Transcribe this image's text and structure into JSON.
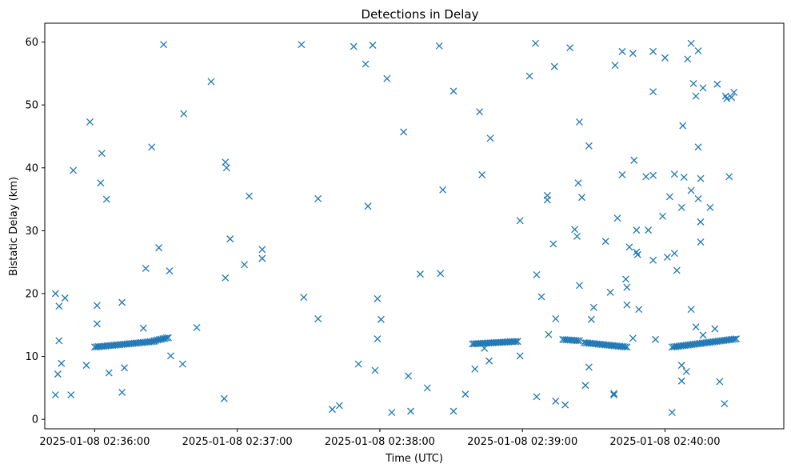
{
  "chart_data": {
    "type": "scatter",
    "title": "Detections in Delay",
    "xlabel": "Time (UTC)",
    "ylabel": "Bistatic Delay (km)",
    "marker": "x",
    "color": "#1f77b4",
    "grid": false,
    "xlim": [
      "2025-01-08 02:35:39",
      "2025-01-08 02:40:50"
    ],
    "ylim": [
      -1.5,
      63
    ],
    "xticks": [
      "2025-01-08 02:36:00",
      "2025-01-08 02:37:00",
      "2025-01-08 02:38:00",
      "2025-01-08 02:39:00",
      "2025-01-08 02:40:00"
    ],
    "yticks": [
      0,
      10,
      20,
      30,
      40,
      50,
      60
    ],
    "points": [
      [
        "2025-01-08 02:35:43.5",
        20.0
      ],
      [
        "2025-01-08 02:35:44.5",
        7.2
      ],
      [
        "2025-01-08 02:35:45",
        18.0
      ],
      [
        "2025-01-08 02:35:45",
        12.5
      ],
      [
        "2025-01-08 02:35:43.5",
        3.9
      ],
      [
        "2025-01-08 02:35:46",
        8.9
      ],
      [
        "2025-01-08 02:35:47.5",
        19.3
      ],
      [
        "2025-01-08 02:35:50",
        3.9
      ],
      [
        "2025-01-08 02:35:51",
        39.6
      ],
      [
        "2025-01-08 02:35:56.5",
        8.6
      ],
      [
        "2025-01-08 02:35:58",
        47.3
      ],
      [
        "2025-01-08 02:36:01",
        18.1
      ],
      [
        "2025-01-08 02:36:01",
        15.2
      ],
      [
        "2025-01-08 02:36:02.5",
        37.6
      ],
      [
        "2025-01-08 02:36:03",
        42.3
      ],
      [
        "2025-01-08 02:36:05",
        35.0
      ],
      [
        "2025-01-08 02:36:06",
        7.4
      ],
      [
        "2025-01-08 02:36:11.5",
        4.3
      ],
      [
        "2025-01-08 02:36:11.5",
        18.6
      ],
      [
        "2025-01-08 02:36:12.5",
        8.2
      ],
      [
        "2025-01-08 02:36:20.5",
        14.5
      ],
      [
        "2025-01-08 02:36:21.5",
        24.0
      ],
      [
        "2025-01-08 02:36:24",
        43.3
      ],
      [
        "2025-01-08 02:36:27",
        27.3
      ],
      [
        "2025-01-08 02:36:29",
        59.6
      ],
      [
        "2025-01-08 02:36:31.5",
        23.6
      ],
      [
        "2025-01-08 02:36:32",
        10.1
      ],
      [
        "2025-01-08 02:36:37",
        8.8
      ],
      [
        "2025-01-08 02:36:37.5",
        48.6
      ],
      [
        "2025-01-08 02:36:43",
        14.6
      ],
      [
        "2025-01-08 02:36:49",
        53.7
      ],
      [
        "2025-01-08 02:36:54.5",
        3.3
      ],
      [
        "2025-01-08 02:36:55",
        40.9
      ],
      [
        "2025-01-08 02:36:55",
        22.5
      ],
      [
        "2025-01-08 02:36:55.5",
        40.0
      ],
      [
        "2025-01-08 02:36:57",
        28.7
      ],
      [
        "2025-01-08 02:37:03",
        24.6
      ],
      [
        "2025-01-08 02:37:05",
        35.5
      ],
      [
        "2025-01-08 02:37:10.5",
        27.0
      ],
      [
        "2025-01-08 02:37:10.5",
        25.6
      ],
      [
        "2025-01-08 02:37:27",
        59.6
      ],
      [
        "2025-01-08 02:37:28",
        19.4
      ],
      [
        "2025-01-08 02:37:34",
        35.1
      ],
      [
        "2025-01-08 02:37:34",
        16.0
      ],
      [
        "2025-01-08 02:37:40",
        1.6
      ],
      [
        "2025-01-08 02:37:43",
        2.2
      ],
      [
        "2025-01-08 02:37:49",
        59.3
      ],
      [
        "2025-01-08 02:37:51",
        8.8
      ],
      [
        "2025-01-08 02:37:54",
        56.5
      ],
      [
        "2025-01-08 02:37:55",
        33.9
      ],
      [
        "2025-01-08 02:37:57",
        59.5
      ],
      [
        "2025-01-08 02:37:58",
        7.8
      ],
      [
        "2025-01-08 02:37:59",
        19.2
      ],
      [
        "2025-01-08 02:37:59",
        12.8
      ],
      [
        "2025-01-08 02:38:00.5",
        15.9
      ],
      [
        "2025-01-08 02:38:03",
        54.2
      ],
      [
        "2025-01-08 02:38:05",
        1.1
      ],
      [
        "2025-01-08 02:38:10",
        45.7
      ],
      [
        "2025-01-08 02:38:12",
        6.9
      ],
      [
        "2025-01-08 02:38:13",
        1.3
      ],
      [
        "2025-01-08 02:38:17",
        23.1
      ],
      [
        "2025-01-08 02:38:20",
        5.0
      ],
      [
        "2025-01-08 02:38:25",
        59.4
      ],
      [
        "2025-01-08 02:38:25.5",
        23.2
      ],
      [
        "2025-01-08 02:38:26.5",
        36.5
      ],
      [
        "2025-01-08 02:38:31",
        52.2
      ],
      [
        "2025-01-08 02:38:31",
        1.3
      ],
      [
        "2025-01-08 02:38:36",
        4.0
      ],
      [
        "2025-01-08 02:38:40",
        8.0
      ],
      [
        "2025-01-08 02:38:42",
        48.9
      ],
      [
        "2025-01-08 02:38:43",
        38.9
      ],
      [
        "2025-01-08 02:38:44",
        11.3
      ],
      [
        "2025-01-08 02:38:46",
        9.3
      ],
      [
        "2025-01-08 02:38:46.5",
        44.7
      ],
      [
        "2025-01-08 02:38:59",
        10.1
      ],
      [
        "2025-01-08 02:38:59",
        31.6
      ],
      [
        "2025-01-08 02:39:03",
        54.6
      ],
      [
        "2025-01-08 02:39:05.5",
        59.8
      ],
      [
        "2025-01-08 02:39:06",
        23.0
      ],
      [
        "2025-01-08 02:39:06",
        3.6
      ],
      [
        "2025-01-08 02:39:08",
        19.5
      ],
      [
        "2025-01-08 02:39:10.5",
        35.6
      ],
      [
        "2025-01-08 02:39:10.5",
        34.9
      ],
      [
        "2025-01-08 02:39:11",
        13.5
      ],
      [
        "2025-01-08 02:39:13",
        27.9
      ],
      [
        "2025-01-08 02:39:13.5",
        56.1
      ],
      [
        "2025-01-08 02:39:14",
        16.0
      ],
      [
        "2025-01-08 02:39:14",
        2.9
      ],
      [
        "2025-01-08 02:39:18",
        2.3
      ],
      [
        "2025-01-08 02:39:20",
        59.1
      ],
      [
        "2025-01-08 02:39:22",
        30.2
      ],
      [
        "2025-01-08 02:39:23",
        29.1
      ],
      [
        "2025-01-08 02:39:23.5",
        37.6
      ],
      [
        "2025-01-08 02:39:24",
        47.3
      ],
      [
        "2025-01-08 02:39:24",
        21.3
      ],
      [
        "2025-01-08 02:39:25",
        35.3
      ],
      [
        "2025-01-08 02:39:26.5",
        5.4
      ],
      [
        "2025-01-08 02:39:28",
        43.5
      ],
      [
        "2025-01-08 02:39:28",
        8.3
      ],
      [
        "2025-01-08 02:39:29",
        15.9
      ],
      [
        "2025-01-08 02:39:30",
        17.8
      ],
      [
        "2025-01-08 02:39:35",
        28.3
      ],
      [
        "2025-01-08 02:39:37",
        20.2
      ],
      [
        "2025-01-08 02:39:38.5",
        3.9
      ],
      [
        "2025-01-08 02:39:38.5",
        4.1
      ],
      [
        "2025-01-08 02:39:39",
        56.3
      ],
      [
        "2025-01-08 02:39:40",
        32.0
      ],
      [
        "2025-01-08 02:39:42",
        58.5
      ],
      [
        "2025-01-08 02:39:42",
        38.9
      ],
      [
        "2025-01-08 02:39:43.5",
        22.3
      ],
      [
        "2025-01-08 02:39:44",
        21.0
      ],
      [
        "2025-01-08 02:39:44",
        18.2
      ],
      [
        "2025-01-08 02:39:45",
        27.4
      ],
      [
        "2025-01-08 02:39:46.5",
        58.2
      ],
      [
        "2025-01-08 02:39:46.5",
        12.9
      ],
      [
        "2025-01-08 02:39:47",
        41.2
      ],
      [
        "2025-01-08 02:39:48",
        30.1
      ],
      [
        "2025-01-08 02:39:48",
        26.6
      ],
      [
        "2025-01-08 02:39:48.5",
        26.2
      ],
      [
        "2025-01-08 02:39:49",
        17.5
      ],
      [
        "2025-01-08 02:39:52",
        38.6
      ],
      [
        "2025-01-08 02:39:53",
        30.1
      ],
      [
        "2025-01-08 02:39:55",
        58.5
      ],
      [
        "2025-01-08 02:39:55",
        52.1
      ],
      [
        "2025-01-08 02:39:55",
        38.8
      ],
      [
        "2025-01-08 02:39:55",
        25.3
      ],
      [
        "2025-01-08 02:39:56",
        12.7
      ],
      [
        "2025-01-08 02:39:59",
        32.3
      ],
      [
        "2025-01-08 02:40:00",
        57.5
      ],
      [
        "2025-01-08 02:40:01",
        25.8
      ],
      [
        "2025-01-08 02:40:02",
        35.4
      ],
      [
        "2025-01-08 02:40:03",
        1.1
      ],
      [
        "2025-01-08 02:40:04",
        39.0
      ],
      [
        "2025-01-08 02:40:04",
        26.4
      ],
      [
        "2025-01-08 02:40:05",
        23.7
      ],
      [
        "2025-01-08 02:40:07",
        33.7
      ],
      [
        "2025-01-08 02:40:07",
        8.6
      ],
      [
        "2025-01-08 02:40:07",
        6.1
      ],
      [
        "2025-01-08 02:40:07.5",
        46.7
      ],
      [
        "2025-01-08 02:40:08",
        38.5
      ],
      [
        "2025-01-08 02:40:09",
        7.6
      ],
      [
        "2025-01-08 02:40:09.5",
        57.3
      ],
      [
        "2025-01-08 02:40:11",
        59.8
      ],
      [
        "2025-01-08 02:40:11",
        36.4
      ],
      [
        "2025-01-08 02:40:11",
        17.5
      ],
      [
        "2025-01-08 02:40:12",
        53.4
      ],
      [
        "2025-01-08 02:40:13",
        51.4
      ],
      [
        "2025-01-08 02:40:13",
        14.7
      ],
      [
        "2025-01-08 02:40:14",
        58.6
      ],
      [
        "2025-01-08 02:40:14",
        43.3
      ],
      [
        "2025-01-08 02:40:14",
        35.1
      ],
      [
        "2025-01-08 02:40:15",
        38.3
      ],
      [
        "2025-01-08 02:40:15",
        31.4
      ],
      [
        "2025-01-08 02:40:15",
        28.2
      ],
      [
        "2025-01-08 02:40:16",
        52.7
      ],
      [
        "2025-01-08 02:40:16",
        13.4
      ],
      [
        "2025-01-08 02:40:19",
        33.7
      ],
      [
        "2025-01-08 02:40:21",
        14.4
      ],
      [
        "2025-01-08 02:40:22",
        53.3
      ],
      [
        "2025-01-08 02:40:23",
        6.0
      ],
      [
        "2025-01-08 02:40:25",
        2.5
      ],
      [
        "2025-01-08 02:40:25.5",
        51.4
      ],
      [
        "2025-01-08 02:40:26",
        51.0
      ],
      [
        "2025-01-08 02:40:27",
        38.6
      ],
      [
        "2025-01-08 02:40:28",
        51.2
      ],
      [
        "2025-01-08 02:40:29",
        52.0
      ]
    ],
    "tracks": [
      {
        "start": [
          "2025-01-08 02:36:00",
          11.5
        ],
        "end": [
          "2025-01-08 02:36:25",
          12.4
        ],
        "interval_s": 0.75
      },
      {
        "start": [
          "2025-01-08 02:36:25",
          12.5
        ],
        "end": [
          "2025-01-08 02:36:31",
          13.0
        ],
        "interval_s": 0.75
      },
      {
        "start": [
          "2025-01-08 02:38:39",
          12.0
        ],
        "end": [
          "2025-01-08 02:38:58",
          12.4
        ],
        "interval_s": 0.75
      },
      {
        "start": [
          "2025-01-08 02:39:17",
          12.7
        ],
        "end": [
          "2025-01-08 02:39:24",
          12.5
        ],
        "interval_s": 0.75
      },
      {
        "start": [
          "2025-01-08 02:39:26",
          12.2
        ],
        "end": [
          "2025-01-08 02:39:44",
          11.5
        ],
        "interval_s": 0.75
      },
      {
        "start": [
          "2025-01-08 02:40:03",
          11.5
        ],
        "end": [
          "2025-01-08 02:40:30",
          12.8
        ],
        "interval_s": 0.75
      }
    ]
  }
}
